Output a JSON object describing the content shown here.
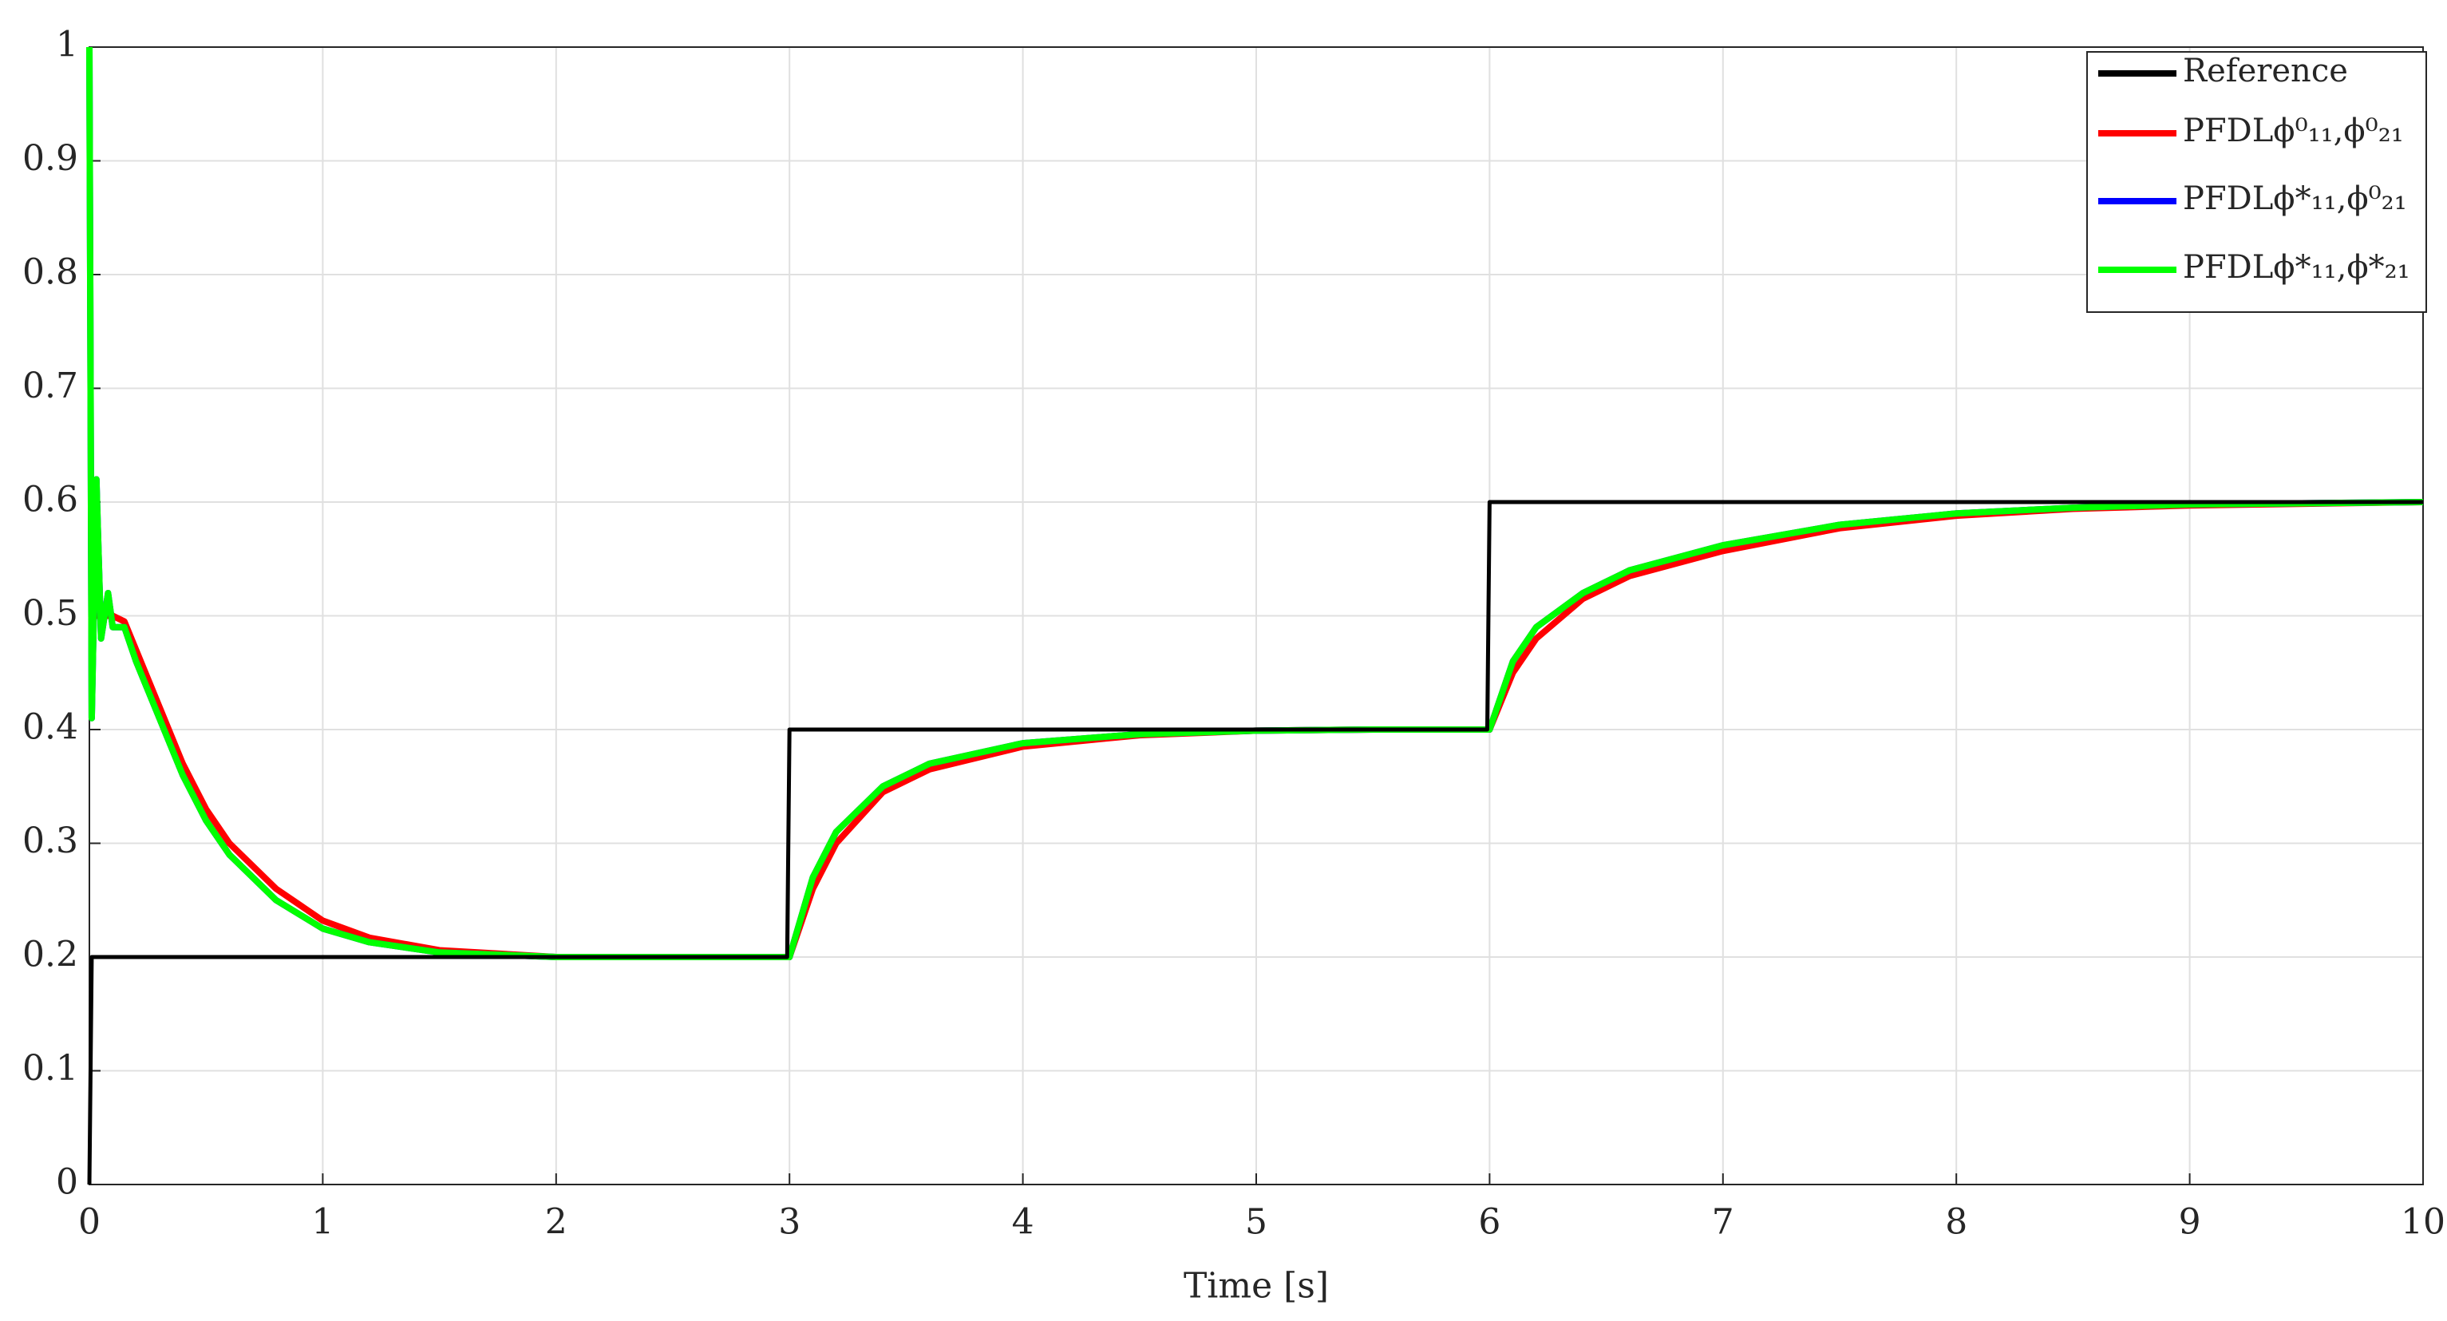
{
  "chart_data": {
    "type": "line",
    "xlabel": "Time [s]",
    "x": [
      0,
      0.01,
      0.03,
      0.05,
      0.08,
      0.1,
      0.15,
      0.2,
      0.3,
      0.4,
      0.5,
      0.6,
      0.8,
      1,
      1.2,
      1.5,
      2,
      2.5,
      2.99,
      3,
      3.1,
      3.2,
      3.4,
      3.6,
      4,
      4.5,
      5,
      5.5,
      5.99,
      6,
      6.1,
      6.2,
      6.4,
      6.6,
      7,
      7.5,
      8,
      8.5,
      9,
      10
    ],
    "series": [
      {
        "name": "Reference",
        "color": "#000000",
        "values": [
          0,
          0.2,
          0.2,
          0.2,
          0.2,
          0.2,
          0.2,
          0.2,
          0.2,
          0.2,
          0.2,
          0.2,
          0.2,
          0.2,
          0.2,
          0.2,
          0.2,
          0.2,
          0.2,
          0.4,
          0.4,
          0.4,
          0.4,
          0.4,
          0.4,
          0.4,
          0.4,
          0.4,
          0.4,
          0.6,
          0.6,
          0.6,
          0.6,
          0.6,
          0.6,
          0.6,
          0.6,
          0.6,
          0.6,
          0.6
        ]
      },
      {
        "name": "PFDLϕ⁰₁₁,ϕ⁰₂₁",
        "color": "#ff0000",
        "values": [
          0.5,
          0.5,
          0.5,
          0.5,
          0.5,
          0.5,
          0.495,
          0.47,
          0.42,
          0.37,
          0.33,
          0.3,
          0.26,
          0.232,
          0.217,
          0.206,
          0.2,
          0.2,
          0.2,
          0.2,
          0.26,
          0.3,
          0.345,
          0.365,
          0.385,
          0.395,
          0.399,
          0.4,
          0.4,
          0.4,
          0.45,
          0.48,
          0.515,
          0.535,
          0.557,
          0.577,
          0.588,
          0.594,
          0.597,
          0.6
        ]
      },
      {
        "name": "PFDLϕ*₁₁,ϕ⁰₂₁",
        "color": "#0000ff",
        "values": [
          1.0,
          0.41,
          0.62,
          0.48,
          0.52,
          0.49,
          0.49,
          0.46,
          0.41,
          0.36,
          0.32,
          0.29,
          0.25,
          0.225,
          0.213,
          0.204,
          0.2,
          0.2,
          0.2,
          0.2,
          0.27,
          0.31,
          0.35,
          0.37,
          0.388,
          0.396,
          0.399,
          0.4,
          0.4,
          0.4,
          0.46,
          0.49,
          0.52,
          0.54,
          0.562,
          0.58,
          0.59,
          0.595,
          0.598,
          0.6
        ]
      },
      {
        "name": "PFDLϕ*₁₁,ϕ*₂₁",
        "color": "#00ff00",
        "values": [
          1.0,
          0.41,
          0.62,
          0.48,
          0.52,
          0.49,
          0.49,
          0.46,
          0.41,
          0.36,
          0.32,
          0.29,
          0.25,
          0.225,
          0.213,
          0.204,
          0.2,
          0.2,
          0.2,
          0.2,
          0.27,
          0.31,
          0.35,
          0.37,
          0.388,
          0.396,
          0.399,
          0.4,
          0.4,
          0.4,
          0.46,
          0.49,
          0.52,
          0.54,
          0.562,
          0.58,
          0.59,
          0.595,
          0.598,
          0.6
        ]
      }
    ],
    "xlim": [
      0,
      10
    ],
    "xticks": [
      0,
      1,
      2,
      3,
      4,
      5,
      6,
      7,
      8,
      9,
      10
    ],
    "ylim": [
      0,
      1
    ],
    "yticks": [
      0,
      0.1,
      0.2,
      0.3,
      0.4,
      0.5,
      0.6,
      0.7,
      0.8,
      0.9,
      1
    ],
    "grid": true,
    "legend": "upper right"
  }
}
